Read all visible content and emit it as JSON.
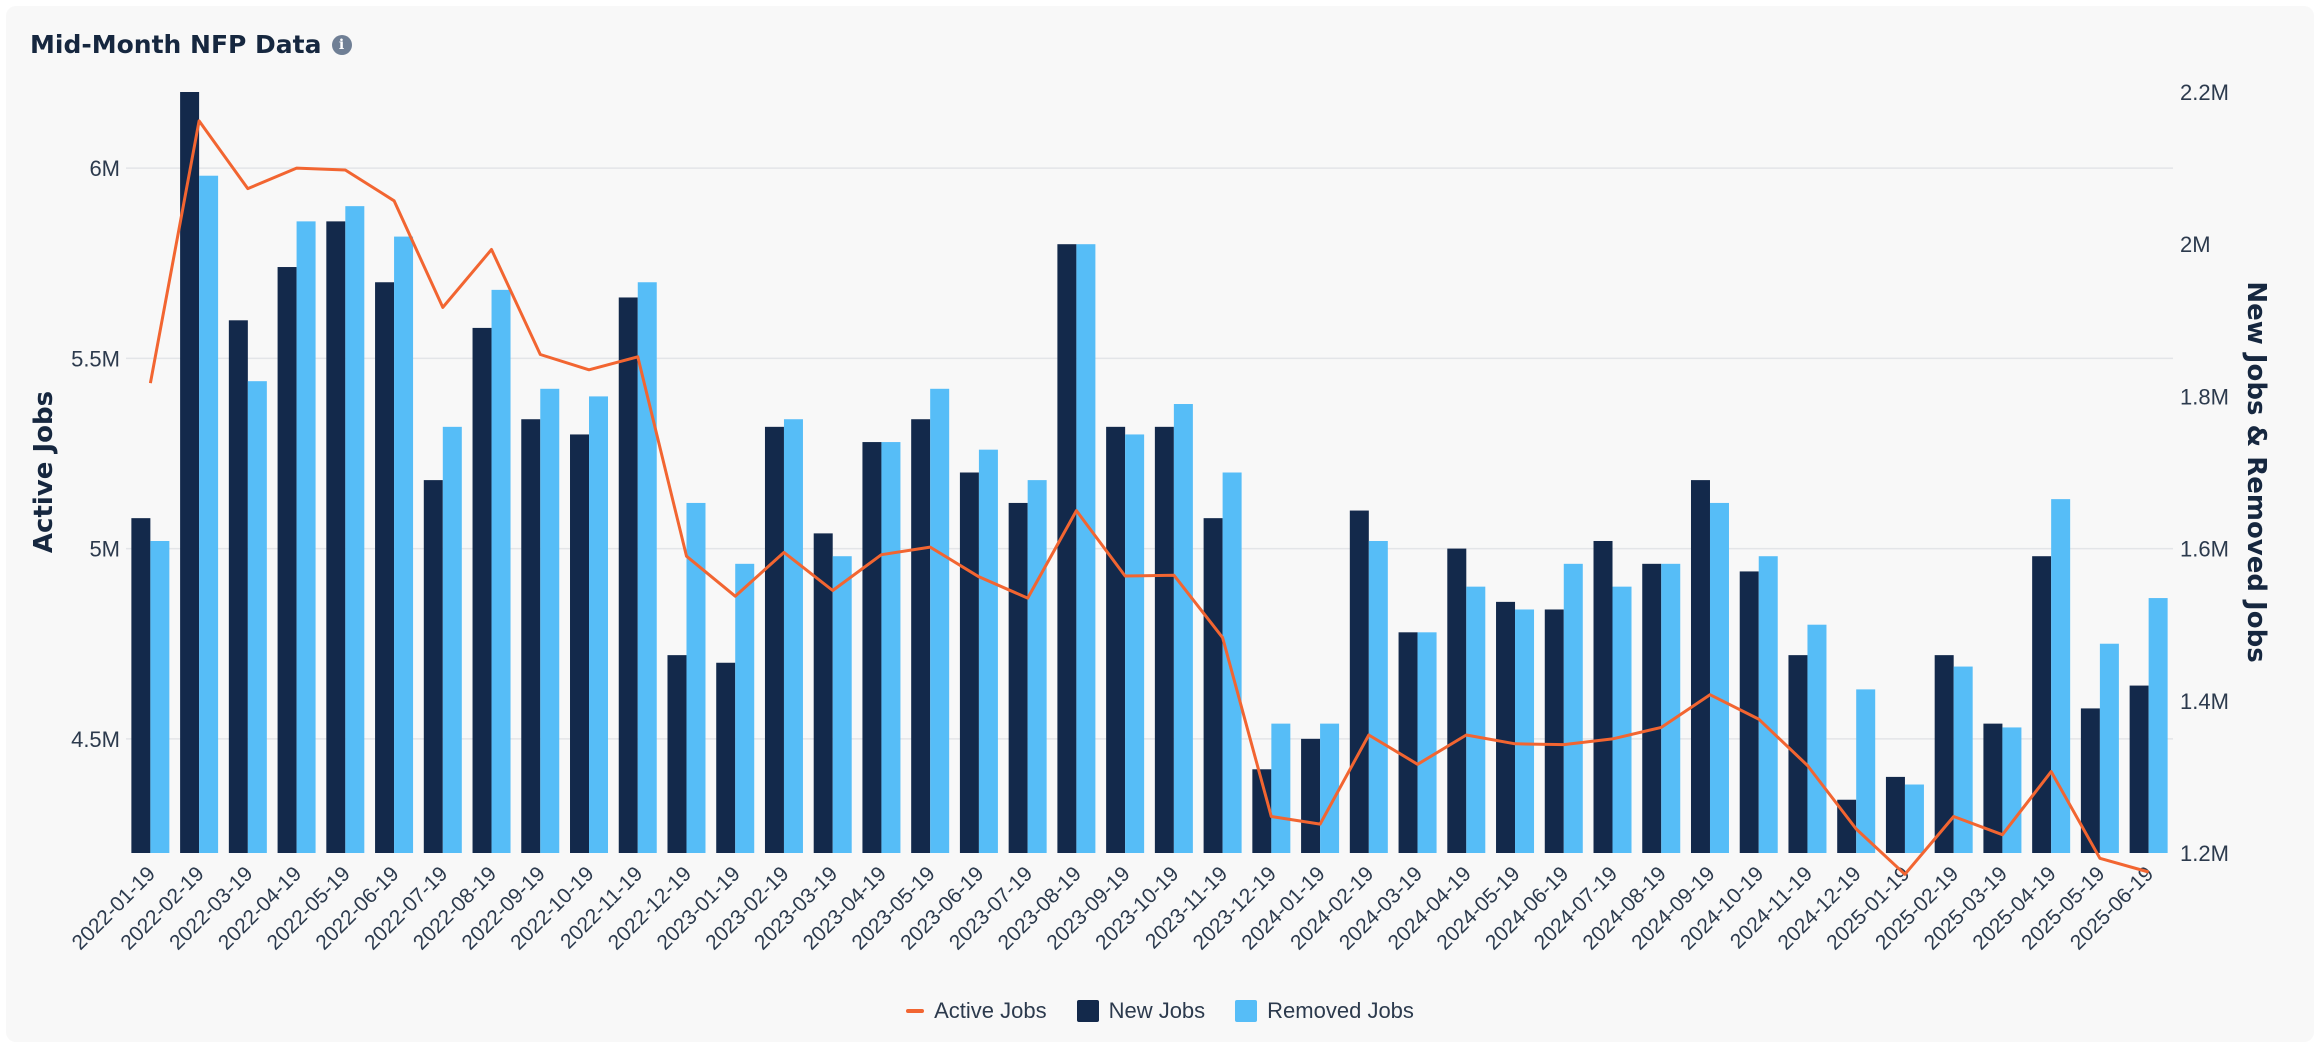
{
  "header": {
    "title": "Mid-Month NFP Data",
    "info_icon": "info-icon"
  },
  "colors": {
    "active": "#f26531",
    "new": "#13294b",
    "removed": "#56bdf7",
    "grid": "#e3e5e8",
    "axis_text": "#2c3a4d"
  },
  "chart_data": {
    "type": "bar",
    "title": "Mid-Month NFP Data",
    "categories": [
      "2022-01-19",
      "2022-02-19",
      "2022-03-19",
      "2022-04-19",
      "2022-05-19",
      "2022-06-19",
      "2022-07-19",
      "2022-08-19",
      "2022-09-19",
      "2022-10-19",
      "2022-11-19",
      "2022-12-19",
      "2023-01-19",
      "2023-02-19",
      "2023-03-19",
      "2023-04-19",
      "2023-05-19",
      "2023-06-19",
      "2023-07-19",
      "2023-08-19",
      "2023-09-19",
      "2023-10-19",
      "2023-11-19",
      "2023-12-19",
      "2024-01-19",
      "2024-02-19",
      "2024-03-19",
      "2024-04-19",
      "2024-05-19",
      "2024-06-19",
      "2024-07-19",
      "2024-08-19",
      "2024-09-19",
      "2024-10-19",
      "2024-11-19",
      "2024-12-19",
      "2025-01-19",
      "2025-02-19",
      "2025-03-19",
      "2025-04-19",
      "2025-05-19",
      "2025-06-19"
    ],
    "series": [
      {
        "name": "Active Jobs",
        "type": "line",
        "axis": "left",
        "values": [
          5.435,
          6.124,
          5.946,
          6.0,
          5.995,
          5.914,
          5.634,
          5.786,
          5.51,
          5.47,
          5.504,
          4.98,
          4.875,
          4.99,
          4.89,
          4.984,
          5.004,
          4.926,
          4.87,
          5.1,
          4.928,
          4.93,
          4.766,
          4.296,
          4.276,
          4.51,
          4.433,
          4.51,
          4.487,
          4.485,
          4.5,
          4.53,
          4.616,
          4.552,
          4.43,
          4.263,
          4.144,
          4.296,
          4.248,
          4.414,
          4.186,
          4.15
        ]
      },
      {
        "name": "New Jobs",
        "type": "bar",
        "axis": "right",
        "values": [
          1.64,
          2.2,
          1.9,
          1.97,
          2.03,
          1.95,
          1.69,
          1.89,
          1.77,
          1.75,
          1.93,
          1.46,
          1.45,
          1.76,
          1.62,
          1.74,
          1.77,
          1.7,
          1.66,
          2.0,
          1.76,
          1.76,
          1.64,
          1.31,
          1.35,
          1.65,
          1.49,
          1.6,
          1.53,
          1.52,
          1.61,
          1.58,
          1.69,
          1.57,
          1.46,
          1.27,
          1.3,
          1.46,
          1.37,
          1.59,
          1.39,
          1.42
        ]
      },
      {
        "name": "Removed Jobs",
        "type": "bar",
        "axis": "right",
        "values": [
          1.61,
          2.09,
          1.82,
          2.03,
          2.05,
          2.01,
          1.76,
          1.94,
          1.81,
          1.8,
          1.95,
          1.66,
          1.58,
          1.77,
          1.59,
          1.74,
          1.81,
          1.73,
          1.69,
          2.0,
          1.75,
          1.79,
          1.7,
          1.37,
          1.37,
          1.61,
          1.49,
          1.55,
          1.52,
          1.58,
          1.55,
          1.58,
          1.66,
          1.59,
          1.5,
          1.415,
          1.29,
          1.445,
          1.365,
          1.665,
          1.475,
          1.535
        ]
      }
    ],
    "left_axis": {
      "label": "Active Jobs",
      "min": 4.2,
      "max": 6.2,
      "ticks": [
        4.5,
        5.0,
        5.5,
        6.0
      ],
      "tick_labels": [
        "4.5M",
        "5M",
        "5.5M",
        "6M"
      ]
    },
    "right_axis": {
      "label": "New Jobs & Removed Jobs",
      "min": 1.2,
      "max": 2.2,
      "ticks": [
        1.2,
        1.4,
        1.6,
        1.8,
        2.0,
        2.2
      ],
      "tick_labels": [
        "1.2M",
        "1.4M",
        "1.6M",
        "1.8M",
        "2M",
        "2.2M"
      ]
    },
    "legend": {
      "position": "bottom-center",
      "items": [
        "Active Jobs",
        "New Jobs",
        "Removed Jobs"
      ]
    }
  }
}
